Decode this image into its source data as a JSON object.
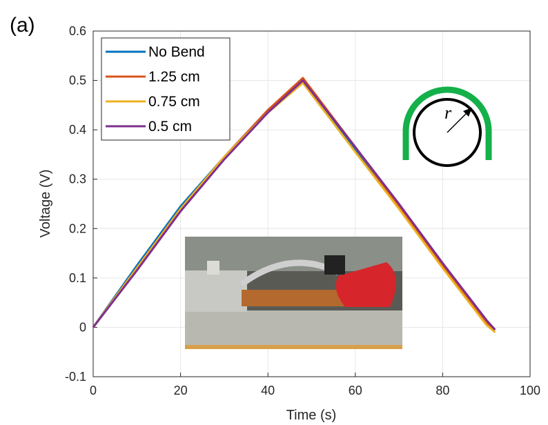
{
  "panel_label": "(a)",
  "chart_data": {
    "type": "line",
    "xlabel": "Time (s)",
    "ylabel": "Voltage (V)",
    "x": [
      0,
      10,
      20,
      30,
      40,
      48,
      60,
      70,
      80,
      90,
      92
    ],
    "series": [
      {
        "name": "No Bend",
        "color": "#0072BD",
        "values": [
          0,
          0.125,
          0.245,
          0.345,
          0.44,
          0.5,
          0.36,
          0.245,
          0.125,
          0.01,
          -0.005
        ]
      },
      {
        "name": "1.25 cm",
        "color": "#D95319",
        "values": [
          0,
          0.12,
          0.24,
          0.345,
          0.44,
          0.505,
          0.365,
          0.245,
          0.125,
          0.01,
          -0.005
        ]
      },
      {
        "name": "0.75 cm",
        "color": "#EDB120",
        "values": [
          0,
          0.12,
          0.24,
          0.345,
          0.435,
          0.495,
          0.355,
          0.24,
          0.12,
          0.005,
          -0.01
        ]
      },
      {
        "name": "0.5 cm",
        "color": "#7E2F8E",
        "values": [
          0,
          0.115,
          0.235,
          0.34,
          0.435,
          0.5,
          0.365,
          0.25,
          0.13,
          0.015,
          -0.005
        ]
      }
    ],
    "xlim": [
      0,
      100
    ],
    "xticks": [
      0,
      20,
      40,
      60,
      80,
      100
    ],
    "ylim": [
      -0.1,
      0.6
    ],
    "yticks": [
      -0.1,
      0,
      0.1,
      0.2,
      0.3,
      0.4,
      0.5,
      0.6
    ],
    "grid": true,
    "legend": "upper left",
    "diagram_label": "r"
  }
}
